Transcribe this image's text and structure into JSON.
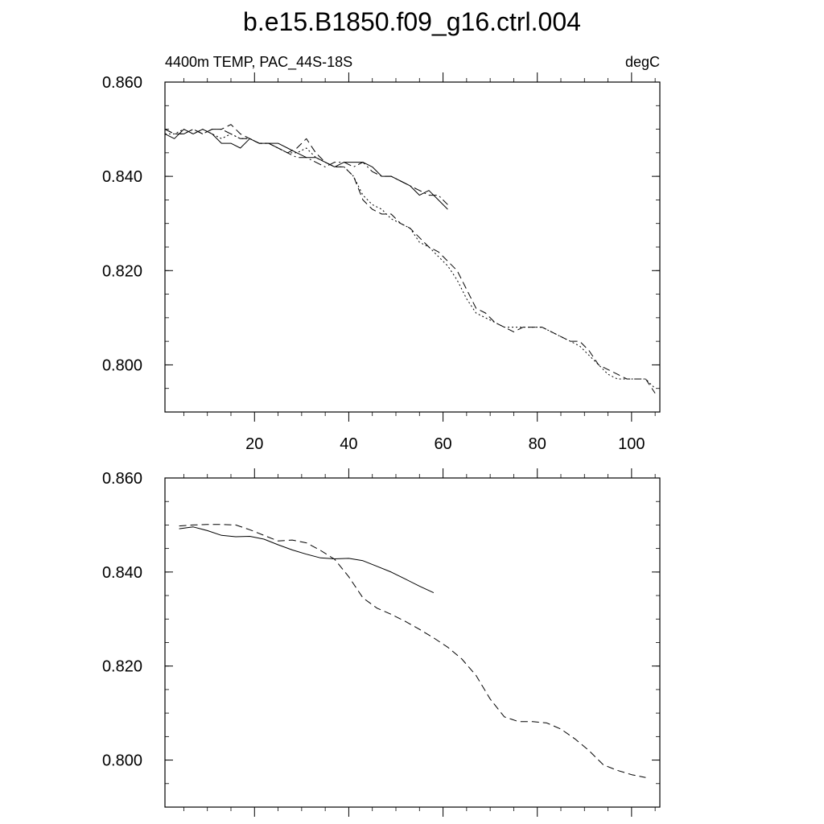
{
  "figure": {
    "title": "b.e15.B1850.f09_g16.ctrl.004",
    "subtitle_left": "4400m TEMP, PAC_44S-18S",
    "subtitle_right": "degC"
  },
  "chart_data": [
    {
      "type": "line",
      "panel": "top",
      "xlim": [
        1,
        106
      ],
      "ylim": [
        0.79,
        0.86
      ],
      "x_ticks": [
        20,
        40,
        60,
        80,
        100
      ],
      "y_ticks": [
        0.8,
        0.82,
        0.84,
        0.86
      ],
      "y_tick_labels": [
        "0.800",
        "0.820",
        "0.840",
        "0.860"
      ],
      "x_tick_labels_shown": true,
      "grid": false,
      "series": [
        {
          "style": "solid",
          "x": [
            1,
            3,
            5,
            7,
            9,
            11,
            13,
            15,
            17,
            19,
            21,
            23,
            25,
            27,
            29,
            31,
            33,
            35,
            37,
            39,
            41,
            43,
            45,
            47,
            49,
            51,
            53,
            55,
            57,
            59,
            61
          ],
          "values": [
            0.849,
            0.848,
            0.85,
            0.849,
            0.85,
            0.849,
            0.847,
            0.847,
            0.846,
            0.848,
            0.847,
            0.847,
            0.847,
            0.846,
            0.845,
            0.844,
            0.844,
            0.843,
            0.842,
            0.843,
            0.843,
            0.843,
            0.842,
            0.84,
            0.84,
            0.839,
            0.838,
            0.836,
            0.837,
            0.835,
            0.833
          ]
        },
        {
          "style": "dash-dot",
          "x": [
            1,
            3,
            5,
            7,
            9,
            11,
            13,
            15,
            17,
            19,
            21,
            23,
            25,
            27,
            29,
            31,
            33,
            35,
            37,
            39,
            41,
            43,
            45,
            47,
            49,
            51,
            53,
            55,
            57,
            59,
            61
          ],
          "values": [
            0.85,
            0.849,
            0.849,
            0.85,
            0.849,
            0.85,
            0.85,
            0.849,
            0.848,
            0.848,
            0.847,
            0.847,
            0.846,
            0.845,
            0.844,
            0.844,
            0.843,
            0.842,
            0.843,
            0.843,
            0.842,
            0.843,
            0.841,
            0.84,
            0.84,
            0.839,
            0.838,
            0.837,
            0.836,
            0.836,
            0.834
          ]
        },
        {
          "style": "dashed",
          "x": [
            1,
            3,
            5,
            7,
            9,
            11,
            13,
            15,
            17,
            19,
            21,
            23,
            25,
            27,
            29,
            31,
            33,
            35,
            37,
            39,
            41,
            43,
            45,
            47,
            49,
            51,
            53,
            55,
            57,
            59,
            61,
            63,
            65,
            67,
            69,
            71,
            73,
            75,
            77,
            79,
            81,
            83,
            85,
            87,
            89,
            91,
            93,
            95,
            97,
            99,
            101,
            103,
            105
          ],
          "values": [
            0.85,
            0.849,
            0.849,
            0.85,
            0.849,
            0.85,
            0.85,
            0.851,
            0.849,
            0.848,
            0.847,
            0.847,
            0.846,
            0.845,
            0.846,
            0.848,
            0.845,
            0.843,
            0.842,
            0.842,
            0.84,
            0.835,
            0.833,
            0.832,
            0.832,
            0.83,
            0.829,
            0.827,
            0.825,
            0.824,
            0.822,
            0.82,
            0.816,
            0.812,
            0.811,
            0.809,
            0.808,
            0.807,
            0.808,
            0.808,
            0.808,
            0.807,
            0.806,
            0.805,
            0.805,
            0.803,
            0.8,
            0.799,
            0.798,
            0.797,
            0.797,
            0.797,
            0.794
          ]
        },
        {
          "style": "dotted",
          "x": [
            1,
            3,
            5,
            7,
            9,
            11,
            13,
            15,
            17,
            19,
            21,
            23,
            25,
            27,
            29,
            31,
            33,
            35,
            37,
            39,
            41,
            43,
            45,
            47,
            49,
            51,
            53,
            55,
            57,
            59,
            61,
            63,
            65,
            67,
            69,
            71,
            73,
            75,
            77,
            79,
            81,
            83,
            85,
            87,
            89,
            91,
            93,
            95,
            97,
            99,
            101,
            103,
            105
          ],
          "values": [
            0.849,
            0.849,
            0.85,
            0.849,
            0.85,
            0.849,
            0.848,
            0.849,
            0.848,
            0.848,
            0.847,
            0.847,
            0.846,
            0.845,
            0.845,
            0.846,
            0.844,
            0.843,
            0.842,
            0.842,
            0.84,
            0.836,
            0.834,
            0.833,
            0.831,
            0.83,
            0.829,
            0.826,
            0.825,
            0.823,
            0.821,
            0.818,
            0.814,
            0.811,
            0.81,
            0.809,
            0.808,
            0.808,
            0.808,
            0.808,
            0.808,
            0.807,
            0.806,
            0.805,
            0.804,
            0.802,
            0.8,
            0.798,
            0.797,
            0.797,
            0.797,
            0.797,
            0.795
          ]
        }
      ]
    },
    {
      "type": "line",
      "panel": "bottom",
      "xlim": [
        1,
        106
      ],
      "ylim": [
        0.79,
        0.86
      ],
      "x_ticks": [
        20,
        40,
        60,
        80,
        100
      ],
      "y_ticks": [
        0.8,
        0.82,
        0.84,
        0.86
      ],
      "y_tick_labels": [
        "0.800",
        "0.820",
        "0.840",
        "0.860"
      ],
      "x_tick_labels_shown": false,
      "grid": false,
      "series": [
        {
          "style": "solid",
          "x": [
            4,
            7,
            10,
            13,
            16,
            19,
            22,
            25,
            28,
            31,
            34,
            37,
            40,
            43,
            46,
            49,
            52,
            55,
            58
          ],
          "values": [
            0.8492,
            0.8496,
            0.8488,
            0.8478,
            0.8475,
            0.8476,
            0.847,
            0.8458,
            0.8447,
            0.8438,
            0.843,
            0.8428,
            0.8429,
            0.8424,
            0.8412,
            0.84,
            0.8385,
            0.837,
            0.8356
          ]
        },
        {
          "style": "dashed",
          "x": [
            4,
            7,
            10,
            13,
            16,
            19,
            22,
            25,
            28,
            31,
            34,
            37,
            40,
            43,
            46,
            49,
            52,
            55,
            58,
            61,
            64,
            67,
            70,
            73,
            76,
            79,
            82,
            85,
            88,
            91,
            94,
            97,
            100,
            103
          ],
          "values": [
            0.8498,
            0.85,
            0.8501,
            0.8501,
            0.85,
            0.849,
            0.8478,
            0.8466,
            0.8468,
            0.8462,
            0.8446,
            0.8427,
            0.839,
            0.8345,
            0.8323,
            0.831,
            0.8295,
            0.8278,
            0.826,
            0.824,
            0.8215,
            0.818,
            0.813,
            0.8092,
            0.8082,
            0.8082,
            0.8079,
            0.8066,
            0.8045,
            0.802,
            0.799,
            0.7978,
            0.7969,
            0.7963
          ]
        }
      ]
    }
  ]
}
